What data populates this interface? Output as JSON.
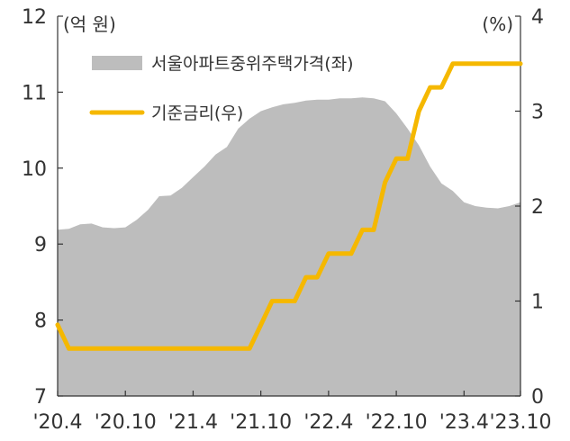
{
  "chart_data": {
    "type": "area+line",
    "x_labels": [
      "'20.4",
      "'20.10",
      "'21.4",
      "'21.10",
      "'22.4",
      "'22.10",
      "'23.4",
      "'23.10"
    ],
    "left_axis": {
      "unit": "(억 원)",
      "ylim": [
        7,
        12
      ],
      "ticks": [
        "7",
        "8",
        "9",
        "10",
        "11",
        "12"
      ]
    },
    "right_axis": {
      "unit": "(%)",
      "ylim": [
        0,
        4
      ],
      "ticks": [
        "0",
        "1",
        "2",
        "3",
        "4"
      ]
    },
    "legend_position": "top-left",
    "series": [
      {
        "name": "서울아파트중위주택가격(좌)",
        "type": "area",
        "axis": "left",
        "color": "#bdbdbd",
        "values": [
          9.19,
          9.2,
          9.26,
          9.27,
          9.22,
          9.21,
          9.22,
          9.32,
          9.45,
          9.63,
          9.64,
          9.74,
          9.88,
          10.02,
          10.18,
          10.28,
          10.52,
          10.65,
          10.75,
          10.8,
          10.84,
          10.86,
          10.89,
          10.9,
          10.9,
          10.92,
          10.92,
          10.93,
          10.92,
          10.88,
          10.72,
          10.52,
          10.3,
          10.02,
          9.8,
          9.7,
          9.55,
          9.5,
          9.48,
          9.47,
          9.5,
          9.55
        ]
      },
      {
        "name": "기준금리(우)",
        "type": "line",
        "axis": "right",
        "color": "#f5b800",
        "values": [
          0.75,
          0.5,
          0.5,
          0.5,
          0.5,
          0.5,
          0.5,
          0.5,
          0.5,
          0.5,
          0.5,
          0.5,
          0.5,
          0.5,
          0.5,
          0.5,
          0.5,
          0.5,
          0.75,
          1.0,
          1.0,
          1.0,
          1.25,
          1.25,
          1.5,
          1.5,
          1.5,
          1.75,
          1.75,
          2.25,
          2.5,
          2.5,
          3.0,
          3.25,
          3.25,
          3.5,
          3.5,
          3.5,
          3.5,
          3.5,
          3.5,
          3.5
        ]
      }
    ]
  }
}
